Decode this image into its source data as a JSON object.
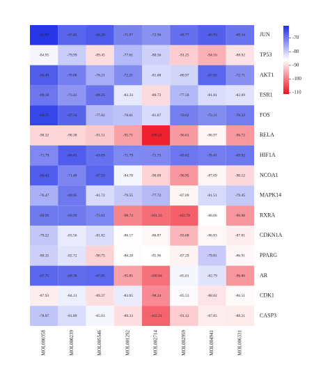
{
  "chart_data": {
    "type": "heatmap",
    "columns": [
      "MOL000358",
      "MOL000239",
      "MOL005546",
      "MOL001292",
      "MOL002714",
      "MOL002959",
      "MOL004941",
      "MOL006331"
    ],
    "rows": [
      "JUN",
      "TP53",
      "AKT1",
      "ESR1",
      "FOS",
      "RELA",
      "HIF1A",
      "NCOA1",
      "MAPK14",
      "RXRA",
      "CDKN1A",
      "PPARG",
      "AR",
      "CDK1",
      "CASP3"
    ],
    "values": [
      [
        -61.87,
        -67.45,
        -66.28,
        -71.07,
        -72.96,
        -68.77,
        -66.93,
        -69.34
      ],
      [
        -84.95,
        -79.99,
        -89.45,
        -77.61,
        -80.56,
        -91.25,
        -94.16,
        -88.92
      ],
      [
        -66.48,
        -70.68,
        -76.21,
        -72.21,
        -81.68,
        -80.97,
        -67.62,
        -72.71
      ],
      [
        -69.58,
        -73.42,
        -69.25,
        -83.33,
        -89.72,
        -77.56,
        -81.81,
        -82.69
      ],
      [
        -63.71,
        -67.34,
        -77.82,
        -78.61,
        -81.67,
        -70.62,
        -72.21,
        -70.32
      ],
      [
        -90.32,
        -90.38,
        -91.51,
        -95.71,
        -109.24,
        -96.61,
        -86.97,
        -96.72
      ],
      [
        -71.79,
        -66.45,
        -69.09,
        -71.79,
        -71.73,
        -69.62,
        -70.41,
        -69.92
      ],
      [
        -66.42,
        -71.48,
        -67.59,
        -84.78,
        -90.69,
        -96.95,
        -87.09,
        -90.12
      ],
      [
        -76.47,
        -69.95,
        -81.72,
        -79.55,
        -77.72,
        -87.09,
        -81.51,
        -79.45
      ],
      [
        -69.99,
        -69.99,
        -71.61,
        -98.74,
        -101.23,
        -102.78,
        -86.06,
        -96.98
      ],
      [
        -79.22,
        -83.56,
        -81.82,
        -86.17,
        -86.87,
        -93.68,
        -86.83,
        -87.81
      ],
      [
        -80.35,
        -82.72,
        -90.75,
        -86.28,
        -85.96,
        -87.29,
        -79.81,
        -86.91
      ],
      [
        -67.75,
        -68.38,
        -67.85,
        -95.85,
        -100.84,
        -85.01,
        -82.79,
        -96.86
      ],
      [
        -87.93,
        -84.13,
        -89.37,
        -83.65,
        -98.24,
        -85.53,
        -88.82,
        -86.51
      ],
      [
        -78.97,
        -81.89,
        -85.03,
        -89.33,
        -102.21,
        -91.12,
        -87.85,
        -88.21
      ]
    ],
    "zlim": [
      -111,
      -61
    ],
    "zticks": [
      -70,
      -80,
      -90,
      -100,
      -110
    ],
    "colors": [
      "#ee1020",
      "#ffffff",
      "#1f2fe6"
    ]
  }
}
